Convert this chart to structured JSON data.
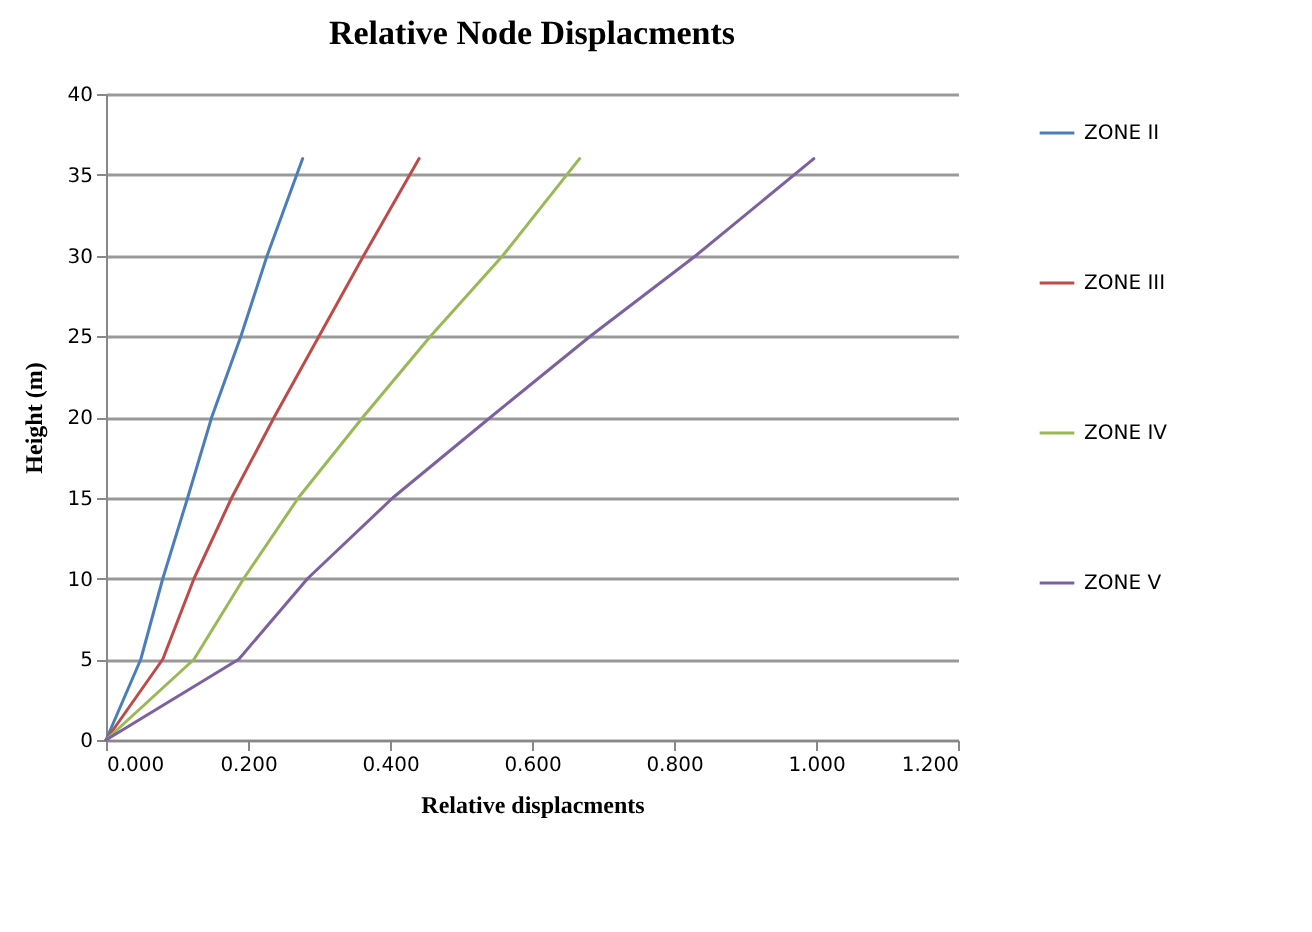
{
  "chart_data": {
    "type": "line",
    "title": "Relative Node Displacments",
    "xlabel": "Relative displacments",
    "ylabel": "Height (m)",
    "series": [
      {
        "name": "ZONE II",
        "color": "#4a7ebb",
        "x": [
          0,
          0.049,
          0.08,
          0.115,
          0.149,
          0.19,
          0.227,
          0.277
        ],
        "values": [
          0,
          5,
          10,
          15,
          20,
          25,
          30,
          36
        ]
      },
      {
        "name": "ZONE III",
        "color": "#be4b48",
        "x": [
          0,
          0.08,
          0.124,
          0.177,
          0.237,
          0.3,
          0.363,
          0.441
        ],
        "values": [
          0,
          5,
          10,
          15,
          20,
          25,
          30,
          36
        ]
      },
      {
        "name": "ZONE IV",
        "color": "#98b954",
        "x": [
          0,
          0.124,
          0.194,
          0.271,
          0.362,
          0.457,
          0.559,
          0.667
        ],
        "values": [
          0,
          5,
          10,
          15,
          20,
          25,
          30,
          36
        ]
      },
      {
        "name": "ZONE V",
        "color": "#7d60a0",
        "x": [
          0,
          0.187,
          0.284,
          0.404,
          0.542,
          0.682,
          0.831,
          0.997
        ],
        "values": [
          0,
          5,
          10,
          15,
          20,
          25,
          30,
          36
        ]
      }
    ],
    "xlim": [
      0,
      1.2
    ],
    "xticks": [
      {
        "value": 0,
        "label": "0.000"
      },
      {
        "value": 0.2,
        "label": "0.200"
      },
      {
        "value": 0.4,
        "label": "0.400"
      },
      {
        "value": 0.6,
        "label": "0.600"
      },
      {
        "value": 0.8,
        "label": "0.800"
      },
      {
        "value": 1,
        "label": "1.000"
      },
      {
        "value": 1.2,
        "label": "1.200"
      }
    ],
    "ylim": [
      0,
      40
    ],
    "yticks": [
      0,
      5,
      10,
      15,
      20,
      25,
      30,
      35,
      40
    ],
    "grid": "y",
    "legend": "right",
    "marker": "none",
    "line_style": "solid"
  }
}
